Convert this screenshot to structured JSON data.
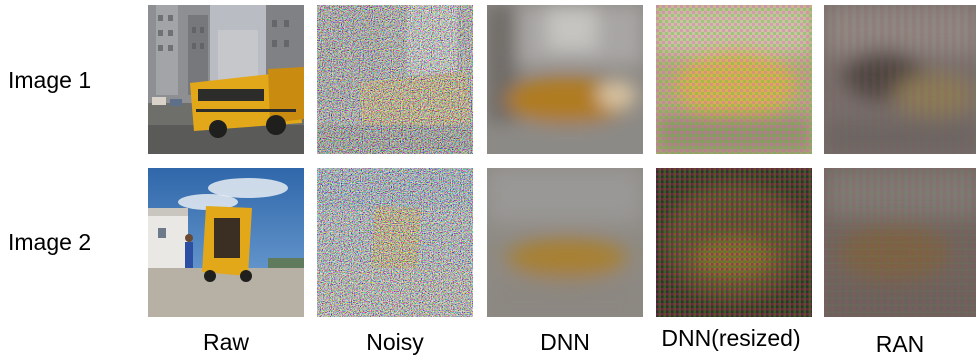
{
  "rows": [
    {
      "label": "Image 1"
    },
    {
      "label": "Image 2"
    }
  ],
  "columns": [
    {
      "label": "Raw"
    },
    {
      "label": "Noisy"
    },
    {
      "label": "DNN"
    },
    {
      "label": "DNN(resized)"
    },
    {
      "label": "RAN"
    }
  ],
  "colors": {
    "bus_yellow": "#e3a71a",
    "sky_blue": "#4a86c6",
    "building_gray": "#8d8f94",
    "street_gray": "#6f6f6c"
  }
}
